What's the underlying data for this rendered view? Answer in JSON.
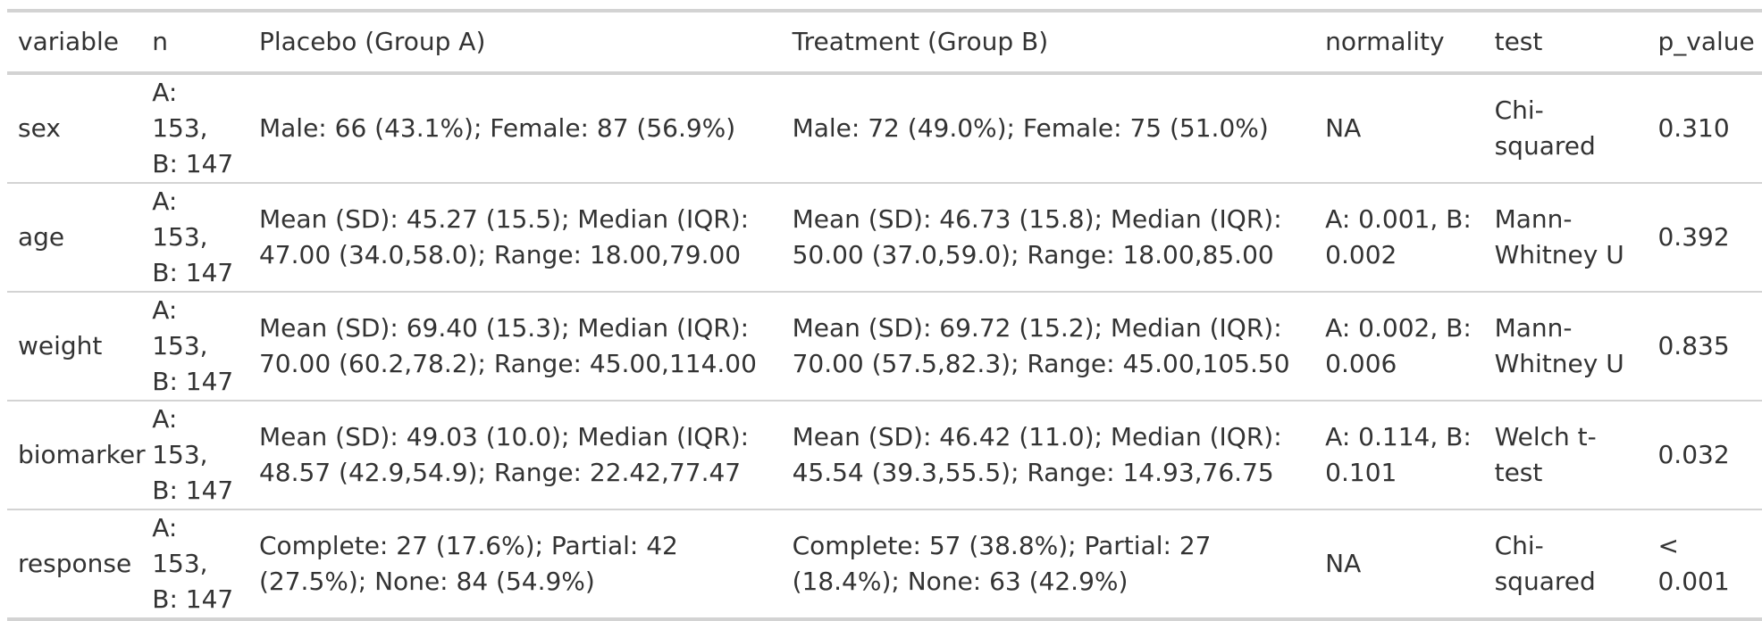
{
  "table": {
    "columns": [
      "variable",
      "n",
      "Placebo (Group A)",
      "Treatment (Group B)",
      "normality",
      "test",
      "p_value"
    ],
    "rows": [
      {
        "variable": "sex",
        "n": "A: 153, B: 147",
        "group_a": "Male: 66 (43.1%); Female: 87 (56.9%)",
        "group_b": "Male: 72 (49.0%); Female: 75 (51.0%)",
        "normality": "NA",
        "test": "Chi-squared",
        "p_value": "0.310"
      },
      {
        "variable": "age",
        "n": "A: 153, B: 147",
        "group_a": "Mean (SD): 45.27 (15.5); Median (IQR): 47.00 (34.0,58.0); Range: 18.00,79.00",
        "group_b": "Mean (SD): 46.73 (15.8); Median (IQR): 50.00 (37.0,59.0); Range: 18.00,85.00",
        "normality": "A: 0.001, B: 0.002",
        "test": "Mann-Whitney U",
        "p_value": "0.392"
      },
      {
        "variable": "weight",
        "n": "A: 153, B: 147",
        "group_a": "Mean (SD): 69.40 (15.3); Median (IQR): 70.00 (60.2,78.2); Range: 45.00,114.00",
        "group_b": "Mean (SD): 69.72 (15.2); Median (IQR): 70.00 (57.5,82.3); Range: 45.00,105.50",
        "normality": "A: 0.002, B: 0.006",
        "test": "Mann-Whitney U",
        "p_value": "0.835"
      },
      {
        "variable": "biomarker",
        "n": "A: 153, B: 147",
        "group_a": "Mean (SD): 49.03 (10.0); Median (IQR): 48.57 (42.9,54.9); Range: 22.42,77.47",
        "group_b": "Mean (SD): 46.42 (11.0); Median (IQR): 45.54 (39.3,55.5); Range: 14.93,76.75",
        "normality": "A: 0.114, B: 0.101",
        "test": "Welch t-test",
        "p_value": "0.032"
      },
      {
        "variable": "response",
        "n": "A: 153, B: 147",
        "group_a": "Complete: 27 (17.6%); Partial: 42 (27.5%); None: 84 (54.9%)",
        "group_b": "Complete: 57 (38.8%); Partial: 27 (18.4%); None: 63 (42.9%)",
        "normality": "NA",
        "test": "Chi-squared",
        "p_value": "< 0.001"
      }
    ]
  }
}
